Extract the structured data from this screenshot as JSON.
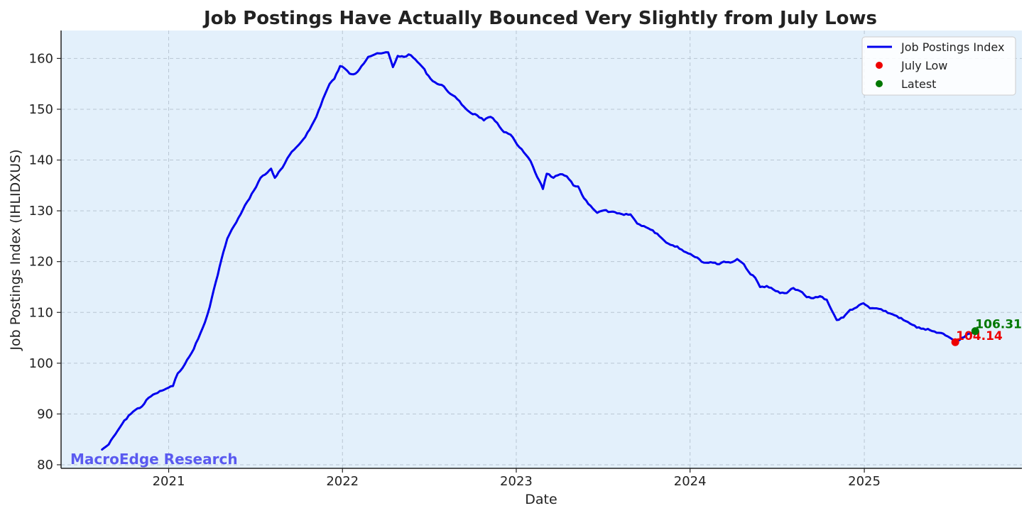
{
  "chart_data": {
    "type": "line",
    "title": "Job Postings Have Actually Bounced Very Slightly from July Lows",
    "xlabel": "Date",
    "ylabel": "Job Postings Index (IHLIDXUS)",
    "xlim": [
      "2020-05-20",
      "2025-11-28"
    ],
    "ylim": [
      79.3,
      165.5
    ],
    "x_ticks": [
      "2021",
      "2022",
      "2023",
      "2024",
      "2025"
    ],
    "x_tick_dates": [
      "2021-01-01",
      "2022-01-01",
      "2023-01-01",
      "2024-01-01",
      "2025-01-01"
    ],
    "y_ticks": [
      80,
      90,
      100,
      110,
      120,
      130,
      140,
      150,
      160
    ],
    "grid": true,
    "legend_position": "top-right",
    "legend": [
      "Job Postings Index",
      "July Low",
      "Latest"
    ],
    "series": [
      {
        "name": "Job Postings Index",
        "color": "#0000ee",
        "points": [
          [
            "2020-08-14",
            83.0
          ],
          [
            "2020-08-28",
            84.0
          ],
          [
            "2020-09-11",
            86.0
          ],
          [
            "2020-09-25",
            88.0
          ],
          [
            "2020-10-09",
            89.7
          ],
          [
            "2020-10-23",
            90.8
          ],
          [
            "2020-11-06",
            91.5
          ],
          [
            "2020-11-20",
            93.2
          ],
          [
            "2020-12-04",
            94.0
          ],
          [
            "2020-12-18",
            94.6
          ],
          [
            "2021-01-01",
            95.2
          ],
          [
            "2021-01-10",
            95.5
          ],
          [
            "2021-01-20",
            98.0
          ],
          [
            "2021-02-04",
            99.8
          ],
          [
            "2021-02-18",
            102.0
          ],
          [
            "2021-03-04",
            104.8
          ],
          [
            "2021-03-18",
            108.0
          ],
          [
            "2021-03-28",
            111.0
          ],
          [
            "2021-04-10",
            116.0
          ],
          [
            "2021-04-22",
            120.5
          ],
          [
            "2021-05-04",
            124.5
          ],
          [
            "2021-05-18",
            127.0
          ],
          [
            "2021-06-01",
            129.3
          ],
          [
            "2021-06-15",
            131.8
          ],
          [
            "2021-06-29",
            134.0
          ],
          [
            "2021-07-13",
            136.5
          ],
          [
            "2021-07-27",
            137.5
          ],
          [
            "2021-08-04",
            138.3
          ],
          [
            "2021-08-12",
            136.5
          ],
          [
            "2021-08-28",
            138.5
          ],
          [
            "2021-09-12",
            141.0
          ],
          [
            "2021-09-26",
            142.5
          ],
          [
            "2021-10-10",
            144.0
          ],
          [
            "2021-10-24",
            146.0
          ],
          [
            "2021-11-07",
            148.5
          ],
          [
            "2021-11-21",
            152.0
          ],
          [
            "2021-12-05",
            155.0
          ],
          [
            "2021-12-15",
            156.0
          ],
          [
            "2021-12-27",
            158.5
          ],
          [
            "2022-01-06",
            158.0
          ],
          [
            "2022-01-16",
            157.0
          ],
          [
            "2022-01-28",
            157.0
          ],
          [
            "2022-02-10",
            158.5
          ],
          [
            "2022-02-24",
            160.3
          ],
          [
            "2022-03-10",
            160.8
          ],
          [
            "2022-03-24",
            161.0
          ],
          [
            "2022-04-07",
            161.2
          ],
          [
            "2022-04-17",
            158.3
          ],
          [
            "2022-04-27",
            160.5
          ],
          [
            "2022-05-10",
            160.3
          ],
          [
            "2022-05-20",
            160.8
          ],
          [
            "2022-06-03",
            159.8
          ],
          [
            "2022-06-18",
            158.3
          ],
          [
            "2022-07-05",
            156.0
          ],
          [
            "2022-07-19",
            155.0
          ],
          [
            "2022-08-02",
            154.5
          ],
          [
            "2022-08-16",
            153.0
          ],
          [
            "2022-08-30",
            152.0
          ],
          [
            "2022-09-13",
            150.5
          ],
          [
            "2022-09-27",
            149.3
          ],
          [
            "2022-10-11",
            148.8
          ],
          [
            "2022-10-25",
            147.8
          ],
          [
            "2022-11-08",
            148.5
          ],
          [
            "2022-11-22",
            147.3
          ],
          [
            "2022-12-06",
            145.5
          ],
          [
            "2022-12-20",
            145.0
          ],
          [
            "2023-01-03",
            143.0
          ],
          [
            "2023-01-17",
            141.5
          ],
          [
            "2023-01-31",
            139.8
          ],
          [
            "2023-02-10",
            137.5
          ],
          [
            "2023-02-18",
            136.0
          ],
          [
            "2023-02-26",
            134.3
          ],
          [
            "2023-03-06",
            137.3
          ],
          [
            "2023-03-20",
            136.5
          ],
          [
            "2023-04-03",
            137.2
          ],
          [
            "2023-04-17",
            136.8
          ],
          [
            "2023-05-01",
            135.0
          ],
          [
            "2023-05-11",
            134.8
          ],
          [
            "2023-05-23",
            132.5
          ],
          [
            "2023-06-06",
            131.0
          ],
          [
            "2023-06-20",
            129.6
          ],
          [
            "2023-07-04",
            130.1
          ],
          [
            "2023-07-18",
            129.8
          ],
          [
            "2023-08-01",
            129.5
          ],
          [
            "2023-08-15",
            129.2
          ],
          [
            "2023-08-29",
            129.3
          ],
          [
            "2023-09-12",
            127.5
          ],
          [
            "2023-09-26",
            127.0
          ],
          [
            "2023-10-10",
            126.3
          ],
          [
            "2023-10-24",
            125.5
          ],
          [
            "2023-11-07",
            124.2
          ],
          [
            "2023-11-21",
            123.3
          ],
          [
            "2023-12-05",
            123.0
          ],
          [
            "2023-12-19",
            122.0
          ],
          [
            "2024-01-02",
            121.5
          ],
          [
            "2024-01-16",
            120.8
          ],
          [
            "2024-01-30",
            119.8
          ],
          [
            "2024-02-13",
            119.9
          ],
          [
            "2024-02-27",
            119.5
          ],
          [
            "2024-03-12",
            120.0
          ],
          [
            "2024-03-26",
            119.8
          ],
          [
            "2024-04-09",
            120.5
          ],
          [
            "2024-04-23",
            119.5
          ],
          [
            "2024-05-07",
            117.5
          ],
          [
            "2024-05-17",
            116.8
          ],
          [
            "2024-05-27",
            115.0
          ],
          [
            "2024-06-10",
            115.2
          ],
          [
            "2024-06-24",
            114.5
          ],
          [
            "2024-07-08",
            113.8
          ],
          [
            "2024-07-22",
            113.8
          ],
          [
            "2024-08-05",
            114.8
          ],
          [
            "2024-08-19",
            114.2
          ],
          [
            "2024-09-02",
            113.0
          ],
          [
            "2024-09-16",
            112.8
          ],
          [
            "2024-09-30",
            113.2
          ],
          [
            "2024-10-14",
            112.5
          ],
          [
            "2024-10-24",
            110.5
          ],
          [
            "2024-11-04",
            108.5
          ],
          [
            "2024-11-18",
            109.0
          ],
          [
            "2024-12-02",
            110.5
          ],
          [
            "2024-12-16",
            111.0
          ],
          [
            "2024-12-30",
            111.8
          ],
          [
            "2025-01-13",
            110.8
          ],
          [
            "2025-01-27",
            110.8
          ],
          [
            "2025-02-10",
            110.3
          ],
          [
            "2025-02-24",
            109.8
          ],
          [
            "2025-03-10",
            109.3
          ],
          [
            "2025-03-24",
            108.5
          ],
          [
            "2025-04-07",
            107.8
          ],
          [
            "2025-04-21",
            107.0
          ],
          [
            "2025-05-05",
            106.8
          ],
          [
            "2025-05-19",
            106.5
          ],
          [
            "2025-06-02",
            106.0
          ],
          [
            "2025-06-16",
            105.8
          ],
          [
            "2025-06-30",
            105.0
          ],
          [
            "2025-07-11",
            104.14
          ],
          [
            "2025-07-25",
            105.0
          ],
          [
            "2025-08-08",
            105.8
          ],
          [
            "2025-08-22",
            106.31
          ]
        ]
      }
    ],
    "markers": [
      {
        "name": "July Low",
        "date": "2025-07-11",
        "value": 104.14,
        "label": "104.14",
        "color": "#ee0000"
      },
      {
        "name": "Latest",
        "date": "2025-08-22",
        "value": 106.31,
        "label": "106.31",
        "color": "#007700"
      }
    ],
    "annotation_text": "MacroEdge Research",
    "colors": {
      "plot_background": "#e3f0fb",
      "watermark": "#5a5af0",
      "axis": "#222222"
    }
  }
}
